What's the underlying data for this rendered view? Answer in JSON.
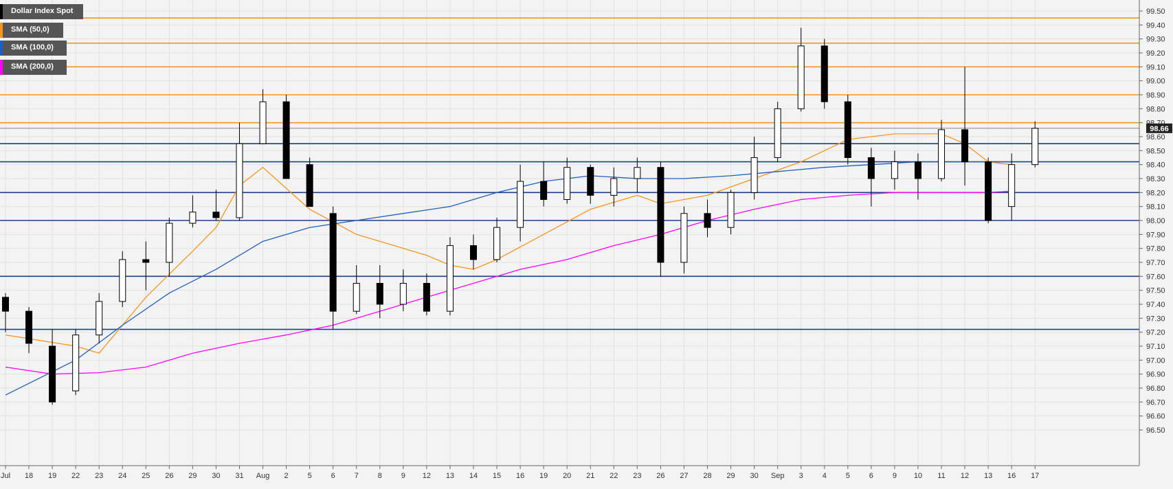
{
  "legend": [
    {
      "label": "Dollar Index Spot",
      "color": "#000000"
    },
    {
      "label": "SMA (50,0)",
      "color": "#f7941d"
    },
    {
      "label": "SMA (100,0)",
      "color": "#1f5fbf"
    },
    {
      "label": "SMA (200,0)",
      "color": "#ff00ff"
    }
  ],
  "last_price": "98.66",
  "chart_data": {
    "type": "candlestick",
    "ylim": [
      96.5,
      99.55
    ],
    "y_ticks": [
      "96.50",
      "96.60",
      "96.70",
      "96.80",
      "96.90",
      "97.00",
      "97.10",
      "97.20",
      "97.30",
      "97.40",
      "97.50",
      "97.60",
      "97.70",
      "97.80",
      "97.90",
      "98.00",
      "98.10",
      "98.20",
      "98.30",
      "98.40",
      "98.50",
      "98.60",
      "98.70",
      "98.80",
      "98.90",
      "99.00",
      "99.10",
      "99.20",
      "99.30",
      "99.40",
      "99.50"
    ],
    "x_ticks": [
      "Jul",
      "18",
      "19",
      "22",
      "23",
      "24",
      "25",
      "26",
      "29",
      "30",
      "31",
      "Aug",
      "2",
      "5",
      "6",
      "7",
      "8",
      "9",
      "12",
      "13",
      "14",
      "15",
      "16",
      "19",
      "20",
      "21",
      "22",
      "23",
      "26",
      "27",
      "28",
      "29",
      "30",
      "Sep",
      "3",
      "4",
      "5",
      "6",
      "9",
      "10",
      "11",
      "12",
      "13",
      "16",
      "17"
    ],
    "resistance_levels": [
      99.45,
      99.27,
      99.1,
      98.9,
      98.7
    ],
    "support_levels": [
      98.55,
      98.42,
      98.2,
      98.0,
      97.6,
      97.22
    ],
    "colors": {
      "resistance": "#f7941d",
      "support": "#1a3e8c",
      "bull": "#ffffff",
      "bear": "#000000",
      "wick": "#000000"
    },
    "days": [
      {
        "x": "Jul",
        "o": 97.45,
        "h": 97.48,
        "c": 97.35,
        "l": 97.2
      },
      {
        "x": "18",
        "o": 97.35,
        "h": 97.38,
        "c": 97.12,
        "l": 97.05
      },
      {
        "x": "19",
        "o": 97.1,
        "h": 97.22,
        "c": 96.7,
        "l": 96.68
      },
      {
        "x": "22",
        "o": 96.78,
        "h": 97.22,
        "c": 97.18,
        "l": 96.75
      },
      {
        "x": "23",
        "o": 97.18,
        "h": 97.48,
        "c": 97.42,
        "l": 97.12
      },
      {
        "x": "24",
        "o": 97.42,
        "h": 97.78,
        "c": 97.72,
        "l": 97.38
      },
      {
        "x": "25",
        "o": 97.72,
        "h": 97.85,
        "c": 97.7,
        "l": 97.5
      },
      {
        "x": "26",
        "o": 97.7,
        "h": 98.02,
        "c": 97.98,
        "l": 97.6
      },
      {
        "x": "29",
        "o": 97.98,
        "h": 98.18,
        "c": 98.06,
        "l": 97.95
      },
      {
        "x": "30",
        "o": 98.06,
        "h": 98.22,
        "c": 98.02,
        "l": 98.0
      },
      {
        "x": "31",
        "o": 98.02,
        "h": 98.7,
        "c": 98.55,
        "l": 98.0
      },
      {
        "x": "Aug",
        "o": 98.55,
        "h": 98.94,
        "c": 98.85,
        "l": 98.55
      },
      {
        "x": "2",
        "o": 98.85,
        "h": 98.9,
        "c": 98.3,
        "l": 98.3
      },
      {
        "x": "5",
        "o": 98.4,
        "h": 98.45,
        "c": 98.1,
        "l": 98.1
      },
      {
        "x": "6",
        "o": 98.05,
        "h": 98.1,
        "c": 97.35,
        "l": 97.22
      },
      {
        "x": "7",
        "o": 97.35,
        "h": 97.68,
        "c": 97.55,
        "l": 97.33
      },
      {
        "x": "8",
        "o": 97.55,
        "h": 97.68,
        "c": 97.4,
        "l": 97.3
      },
      {
        "x": "9",
        "o": 97.4,
        "h": 97.65,
        "c": 97.55,
        "l": 97.35
      },
      {
        "x": "12",
        "o": 97.55,
        "h": 97.62,
        "c": 97.35,
        "l": 97.32
      },
      {
        "x": "13",
        "o": 97.35,
        "h": 97.88,
        "c": 97.82,
        "l": 97.32
      },
      {
        "x": "14",
        "o": 97.82,
        "h": 97.9,
        "c": 97.72,
        "l": 97.65
      },
      {
        "x": "15",
        "o": 97.72,
        "h": 98.02,
        "c": 97.95,
        "l": 97.7
      },
      {
        "x": "16",
        "o": 97.95,
        "h": 98.4,
        "c": 98.28,
        "l": 97.85
      },
      {
        "x": "19",
        "o": 98.28,
        "h": 98.42,
        "c": 98.15,
        "l": 98.1
      },
      {
        "x": "20",
        "o": 98.15,
        "h": 98.45,
        "c": 98.38,
        "l": 98.12
      },
      {
        "x": "21",
        "o": 98.38,
        "h": 98.4,
        "c": 98.18,
        "l": 98.12
      },
      {
        "x": "22",
        "o": 98.18,
        "h": 98.38,
        "c": 98.3,
        "l": 98.1
      },
      {
        "x": "23",
        "o": 98.3,
        "h": 98.45,
        "c": 98.38,
        "l": 98.2
      },
      {
        "x": "26",
        "o": 98.38,
        "h": 98.42,
        "c": 97.7,
        "l": 97.6
      },
      {
        "x": "27",
        "o": 97.7,
        "h": 98.1,
        "c": 98.05,
        "l": 97.62
      },
      {
        "x": "28",
        "o": 98.05,
        "h": 98.15,
        "c": 97.95,
        "l": 97.88
      },
      {
        "x": "29",
        "o": 97.95,
        "h": 98.22,
        "c": 98.2,
        "l": 97.9
      },
      {
        "x": "30",
        "o": 98.2,
        "h": 98.6,
        "c": 98.45,
        "l": 98.15
      },
      {
        "x": "Sep",
        "o": 98.45,
        "h": 98.85,
        "c": 98.8,
        "l": 98.42
      },
      {
        "x": "3",
        "o": 98.8,
        "h": 99.38,
        "c": 99.25,
        "l": 98.78
      },
      {
        "x": "4",
        "o": 99.25,
        "h": 99.3,
        "c": 98.85,
        "l": 98.8
      },
      {
        "x": "5",
        "o": 98.85,
        "h": 98.9,
        "c": 98.45,
        "l": 98.4
      },
      {
        "x": "6",
        "o": 98.45,
        "h": 98.52,
        "c": 98.3,
        "l": 98.1
      },
      {
        "x": "9",
        "o": 98.3,
        "h": 98.5,
        "c": 98.42,
        "l": 98.22
      },
      {
        "x": "10",
        "o": 98.42,
        "h": 98.48,
        "c": 98.3,
        "l": 98.15
      },
      {
        "x": "11",
        "o": 98.3,
        "h": 98.72,
        "c": 98.65,
        "l": 98.28
      },
      {
        "x": "12",
        "o": 98.65,
        "h": 99.1,
        "c": 98.42,
        "l": 98.25
      },
      {
        "x": "13",
        "o": 98.42,
        "h": 98.45,
        "c": 98.0,
        "l": 97.98
      },
      {
        "x": "16",
        "o": 98.1,
        "h": 98.48,
        "c": 98.4,
        "l": 98.0
      },
      {
        "x": "17",
        "o": 98.4,
        "h": 98.71,
        "c": 98.66,
        "l": 98.38
      }
    ],
    "sma_50": [
      [
        0,
        97.18
      ],
      [
        3,
        97.1
      ],
      [
        4,
        97.05
      ],
      [
        6,
        97.45
      ],
      [
        8,
        97.78
      ],
      [
        9,
        97.95
      ],
      [
        10,
        98.25
      ],
      [
        11,
        98.38
      ],
      [
        13,
        98.08
      ],
      [
        15,
        97.9
      ],
      [
        18,
        97.75
      ],
      [
        19,
        97.68
      ],
      [
        20,
        97.65
      ],
      [
        21,
        97.72
      ],
      [
        23,
        97.9
      ],
      [
        25,
        98.08
      ],
      [
        27,
        98.18
      ],
      [
        28,
        98.12
      ],
      [
        30,
        98.18
      ],
      [
        32,
        98.3
      ],
      [
        34,
        98.42
      ],
      [
        36,
        98.58
      ],
      [
        38,
        98.62
      ],
      [
        40,
        98.62
      ],
      [
        41,
        98.55
      ],
      [
        42,
        98.42
      ],
      [
        43,
        98.4
      ]
    ],
    "sma_100": [
      [
        0,
        96.75
      ],
      [
        3,
        97.0
      ],
      [
        5,
        97.25
      ],
      [
        7,
        97.48
      ],
      [
        9,
        97.65
      ],
      [
        11,
        97.85
      ],
      [
        13,
        97.95
      ],
      [
        15,
        98.0
      ],
      [
        17,
        98.05
      ],
      [
        19,
        98.1
      ],
      [
        21,
        98.2
      ],
      [
        23,
        98.28
      ],
      [
        25,
        98.32
      ],
      [
        27,
        98.3
      ],
      [
        29,
        98.3
      ],
      [
        31,
        98.32
      ],
      [
        33,
        98.35
      ],
      [
        35,
        98.38
      ],
      [
        37,
        98.4
      ],
      [
        39,
        98.42
      ],
      [
        41,
        98.42
      ],
      [
        43,
        98.42
      ]
    ],
    "sma_200": [
      [
        0,
        96.95
      ],
      [
        2,
        96.9
      ],
      [
        4,
        96.91
      ],
      [
        6,
        96.95
      ],
      [
        8,
        97.05
      ],
      [
        10,
        97.12
      ],
      [
        12,
        97.18
      ],
      [
        14,
        97.25
      ],
      [
        16,
        97.35
      ],
      [
        18,
        97.45
      ],
      [
        20,
        97.55
      ],
      [
        22,
        97.65
      ],
      [
        24,
        97.72
      ],
      [
        26,
        97.82
      ],
      [
        28,
        97.9
      ],
      [
        30,
        98.0
      ],
      [
        32,
        98.08
      ],
      [
        34,
        98.15
      ],
      [
        36,
        98.18
      ],
      [
        38,
        98.2
      ],
      [
        40,
        98.2
      ],
      [
        42,
        98.2
      ],
      [
        43,
        98.21
      ]
    ],
    "sma_colors": {
      "sma_50": "#f7941d",
      "sma_100": "#1f5fbf",
      "sma_200": "#ff00ff"
    }
  }
}
